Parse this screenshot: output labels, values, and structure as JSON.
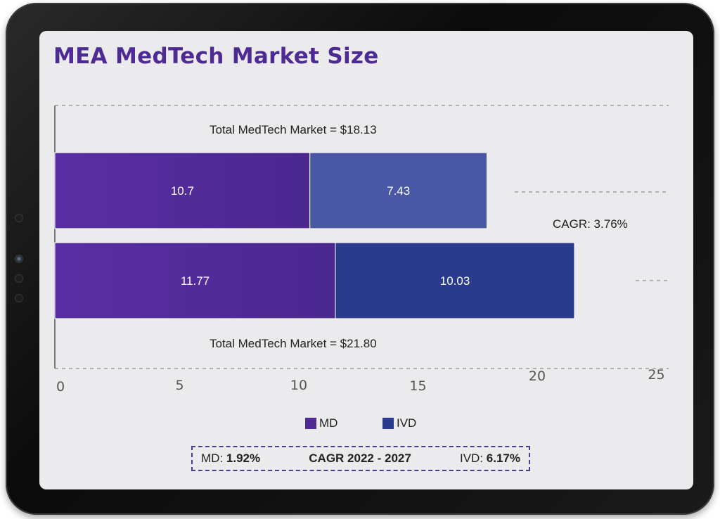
{
  "title": "MEA MedTech Market Size",
  "colors": {
    "md": "#4e2a93",
    "ivd_top": "#4a57a4",
    "ivd_bottom": "#2a3a8c",
    "title": "#4e2a93"
  },
  "chart_data": {
    "type": "bar",
    "orientation": "horizontal",
    "stacked": true,
    "categories": [
      "Total MedTech Market = $18.13",
      "Total MedTech Market = $21.80"
    ],
    "series": [
      {
        "name": "MD",
        "values": [
          10.7,
          11.77
        ],
        "labels": [
          "10.7",
          "11.77"
        ]
      },
      {
        "name": "IVD",
        "values": [
          7.43,
          10.03
        ],
        "labels": [
          "7.43",
          "10.03"
        ]
      }
    ],
    "xlim": [
      0,
      25
    ],
    "xticks": [
      "0",
      "5",
      "10",
      "15",
      "20",
      "25"
    ],
    "annotations": [
      "CAGR: 3.76%"
    ],
    "grid": "dashed horizontal",
    "legend": "bottom-center"
  },
  "cagr_panel": {
    "md_label": "MD:",
    "md_value": "1.92%",
    "center": "CAGR 2022 - 2027",
    "ivd_label": "IVD:",
    "ivd_value": "6.17%"
  }
}
